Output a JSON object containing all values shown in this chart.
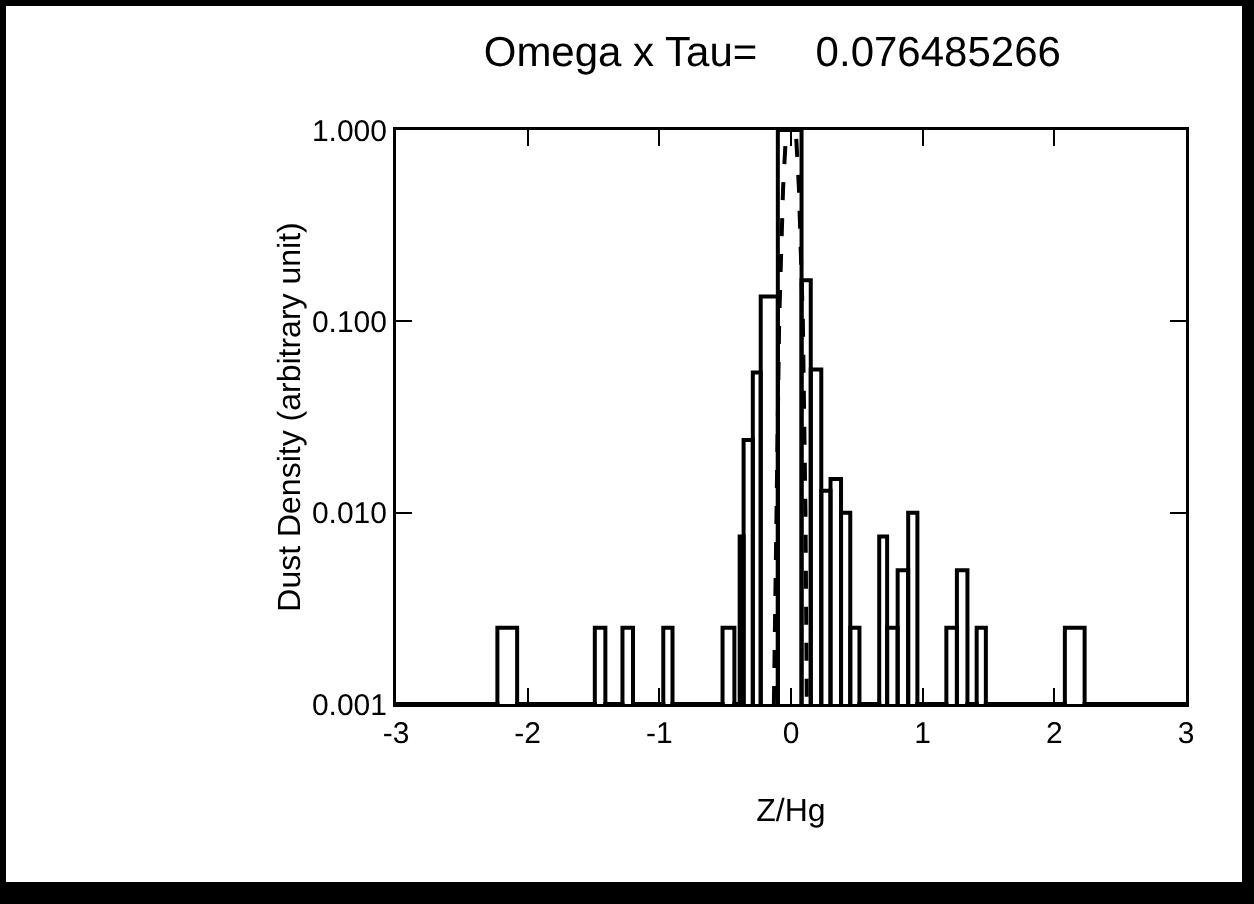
{
  "chart_data": {
    "type": "histogram",
    "title": "Omega x Tau=     0.076485266",
    "xlabel": "Z/Hg",
    "ylabel": "Dust Density (arbitrary unit)",
    "log": "y",
    "xlim": [
      -3,
      3
    ],
    "ylim": [
      0.001,
      1
    ],
    "xticks": [
      -3,
      -2,
      -1,
      0,
      1,
      2,
      3
    ],
    "yticks": [
      {
        "value": 0.001,
        "label": "0.001"
      },
      {
        "value": 0.01,
        "label": "0.010"
      },
      {
        "value": 0.1,
        "label": "0.100"
      },
      {
        "value": 1,
        "label": "1.000"
      }
    ],
    "series": [
      {
        "color": "#000000",
        "bins": [
          -3,
          -2.23,
          -2.08,
          -1.49,
          -1.41,
          -1.28,
          -1.2,
          -0.97,
          -0.9,
          -0.52,
          -0.43,
          -0.39,
          -0.36,
          -0.29,
          -0.23,
          -0.1,
          0.08,
          0.15,
          0.23,
          0.3,
          0.38,
          0.45,
          0.52,
          0.67,
          0.73,
          0.81,
          0.89,
          0.96,
          1.18,
          1.26,
          1.34,
          1.41,
          1.48,
          2.08,
          2.23,
          3
        ],
        "values": [
          0.001,
          0.0025,
          0.001,
          0.0025,
          0.001,
          0.0025,
          0.001,
          0.0025,
          0.001,
          0.0025,
          0.001,
          0.0075,
          0.024,
          0.054,
          0.135,
          1,
          0.164,
          0.056,
          0.013,
          0.015,
          0.01,
          0.0025,
          0.001,
          0.0075,
          0.0025,
          0.005,
          0.01,
          0.001,
          0.0025,
          0.005,
          0.001,
          0.0025,
          0.001,
          0.0025,
          0.001
        ]
      },
      {
        "type": "line",
        "color": "#000000",
        "line_style": "dashed",
        "x": [
          -0.13,
          -0.11,
          -0.09,
          -0.06,
          -0.04,
          0.04,
          0.06,
          0.09,
          0.11,
          0.12
        ],
        "values": [
          0.001,
          0.01,
          0.1,
          0.5,
          0.9,
          0.9,
          0.5,
          0.1,
          0.01,
          0.001
        ]
      }
    ]
  }
}
